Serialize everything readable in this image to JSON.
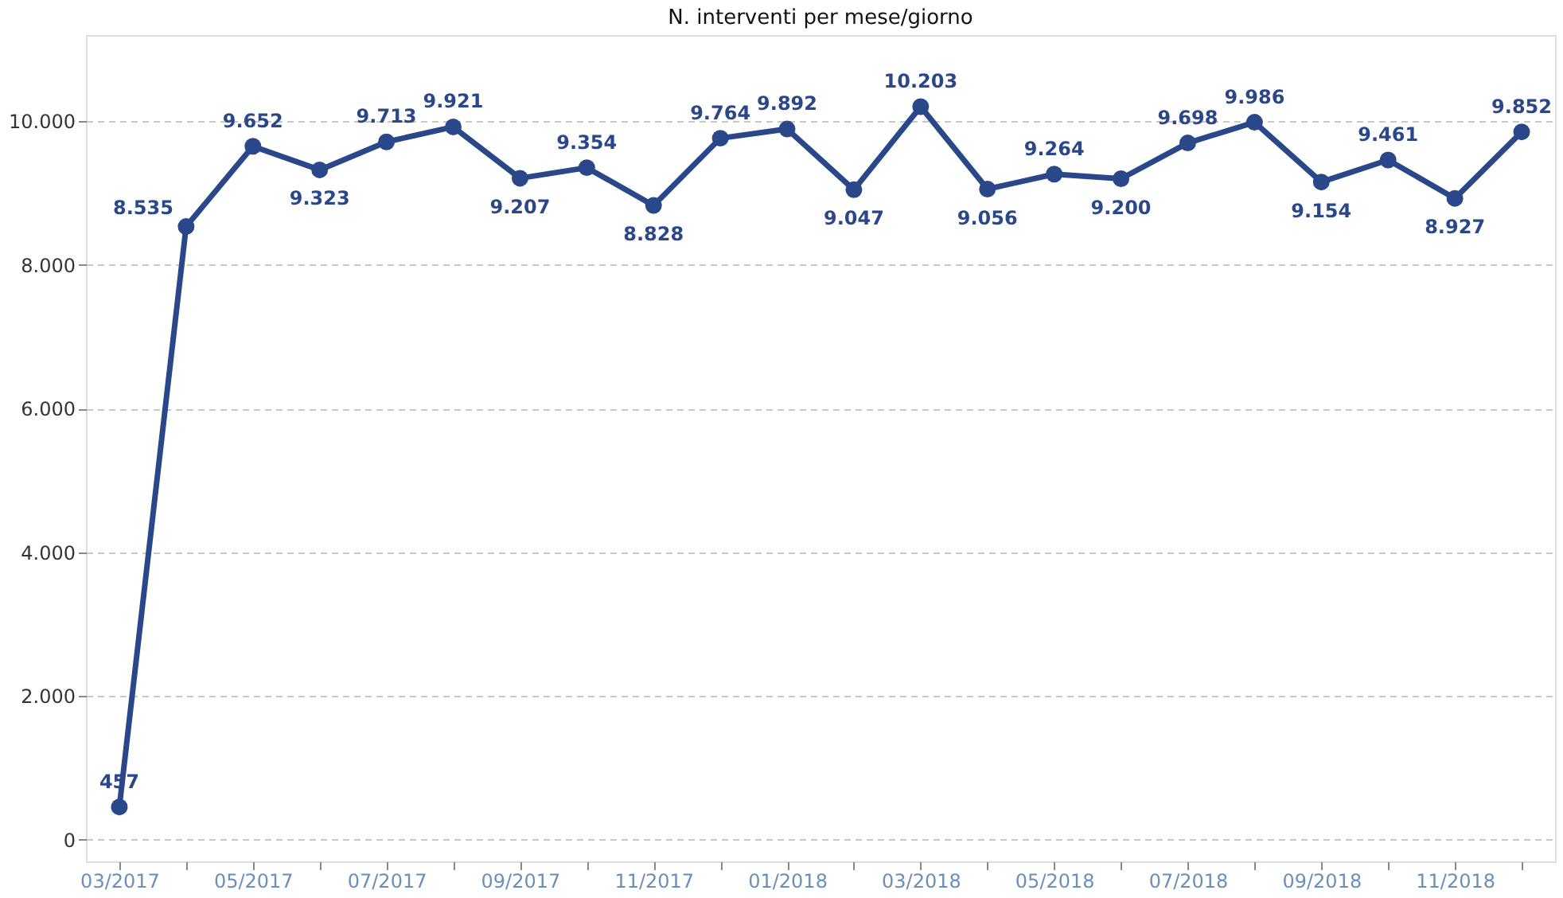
{
  "chart_data": {
    "type": "line",
    "title": "N. interventi per mese/giorno",
    "categories": [
      "03/2017",
      null,
      "05/2017",
      null,
      "07/2017",
      null,
      "09/2017",
      null,
      "11/2017",
      null,
      "01/2018",
      null,
      "03/2018",
      null,
      "05/2018",
      null,
      "07/2018",
      null,
      "09/2018",
      null,
      "11/2018",
      null
    ],
    "series": [
      {
        "color": "#2a4789",
        "values": [
          457,
          8535,
          9652,
          9323,
          9713,
          9921,
          9207,
          9354,
          8828,
          9764,
          9892,
          9047,
          10203,
          9056,
          9264,
          9200,
          9698,
          9986,
          9154,
          9461,
          8927,
          9852
        ],
        "value_labels": [
          "457",
          "8.535",
          "9.652",
          "9.323",
          "9.713",
          "9.921",
          "9.207",
          "9.354",
          "8.828",
          "9.764",
          "9.892",
          "9.047",
          "10.203",
          "9.056",
          "9.264",
          "9.200",
          "9.698",
          "9.986",
          "9.154",
          "9.461",
          "8.927",
          "9.852"
        ]
      }
    ],
    "ylim": [
      -300,
      11200
    ],
    "yticks": [
      0,
      {
        "value": 2000,
        "label": "2.000"
      },
      {
        "value": 4000,
        "label": "4.000"
      },
      {
        "value": 6000,
        "label": "6.000"
      },
      {
        "value": 8000,
        "label": "8.000"
      },
      {
        "value": 10000,
        "label": "10.000"
      }
    ],
    "grid": "y",
    "marker": "circle",
    "line_style": "solid"
  }
}
